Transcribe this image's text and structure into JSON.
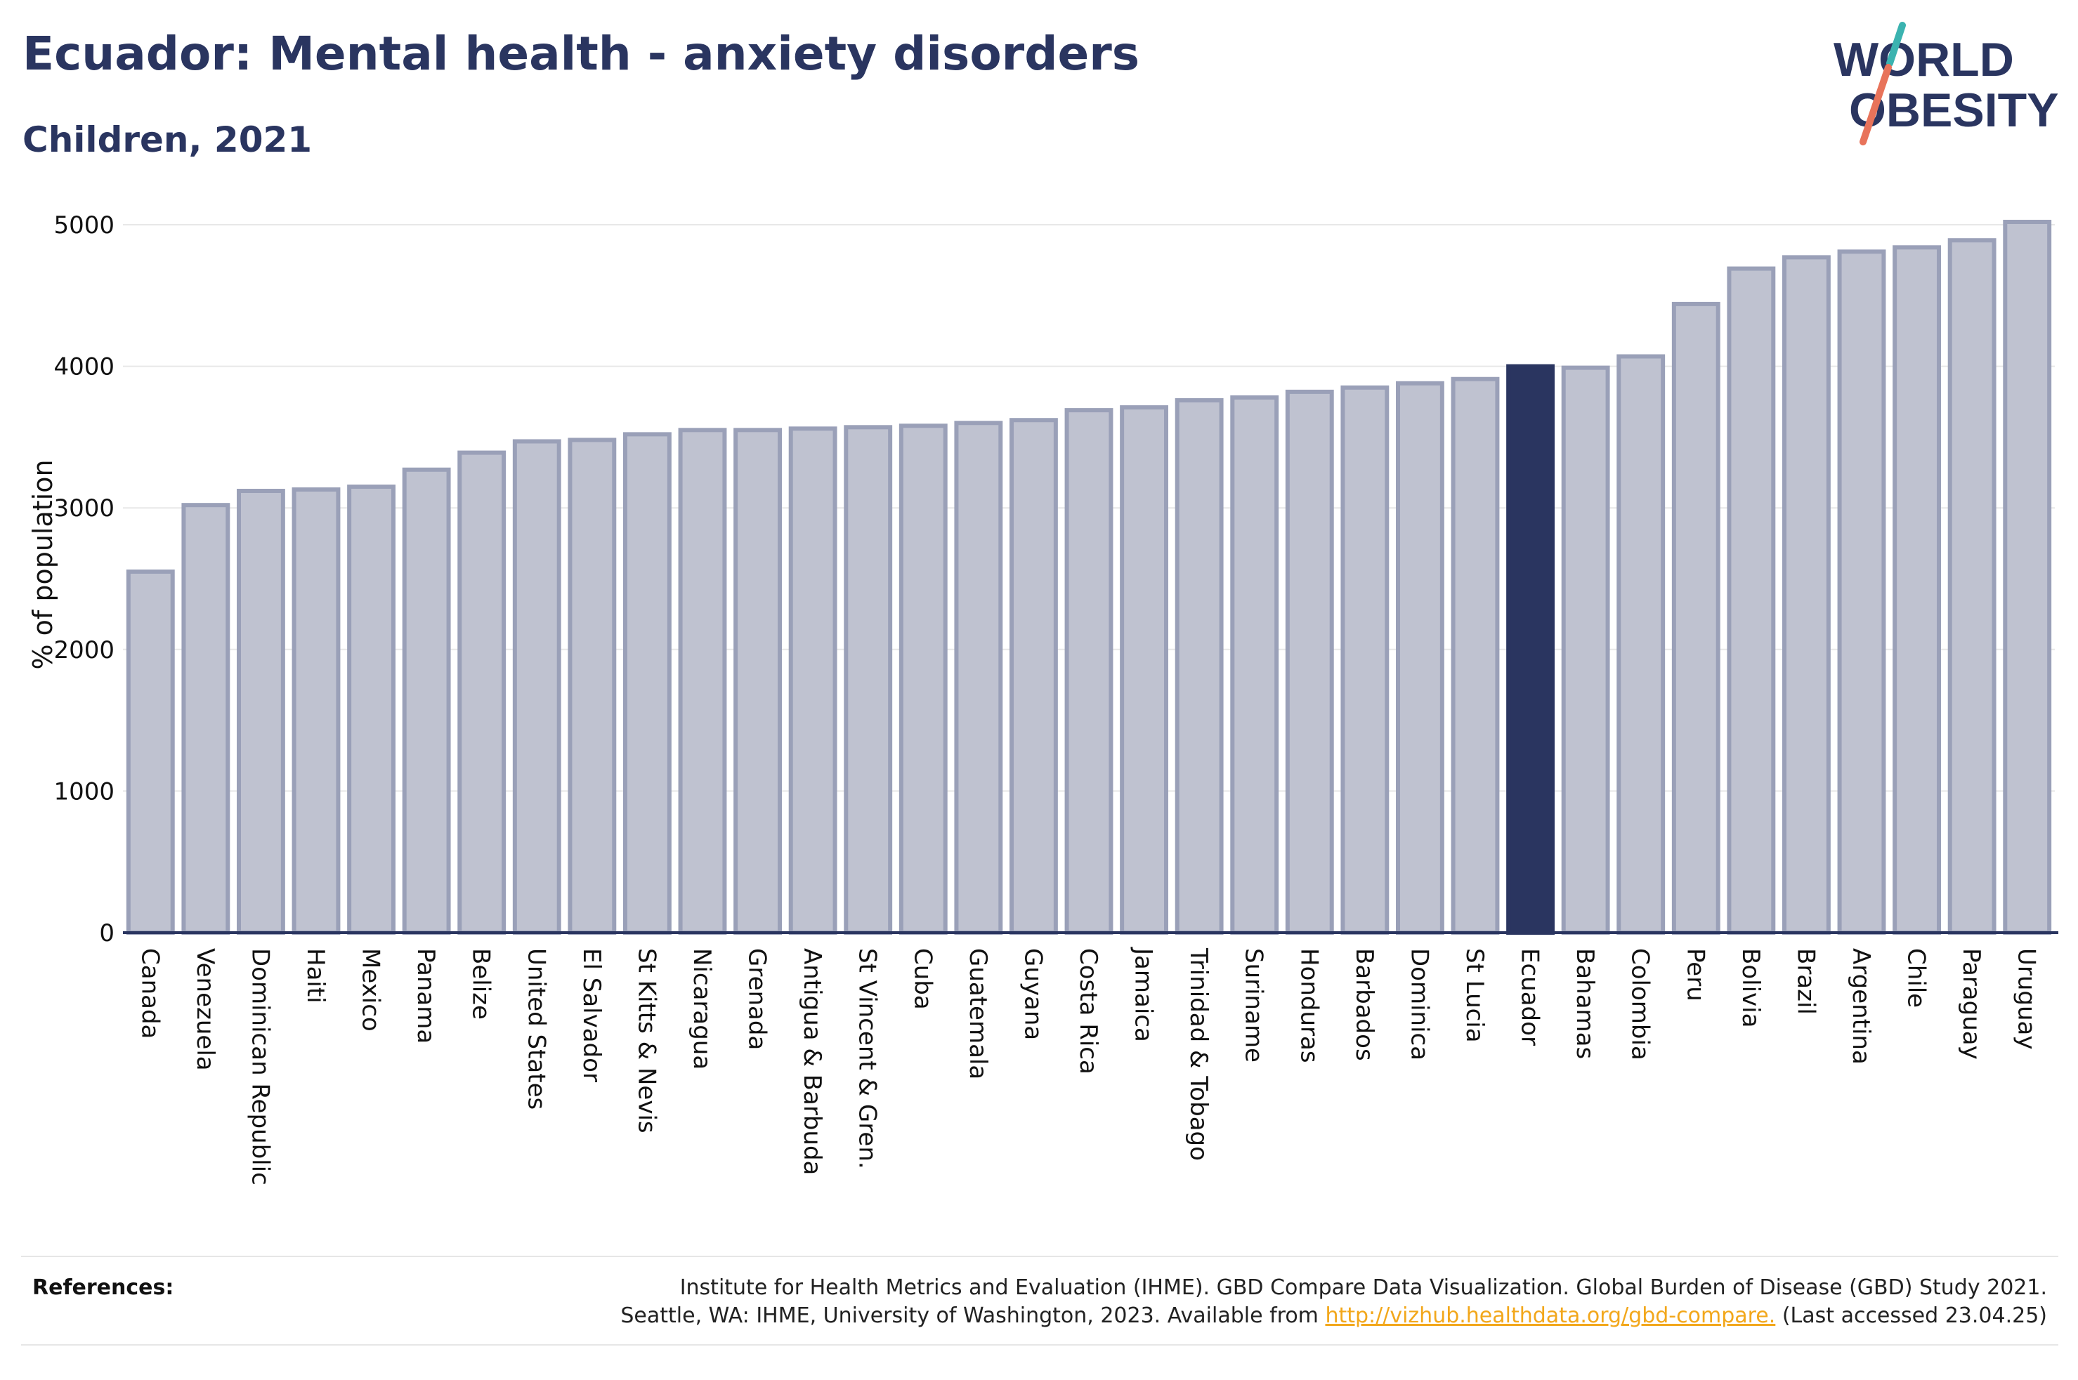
{
  "header": {
    "title": "Ecuador: Mental health - anxiety disorders",
    "subtitle": "Children, 2021"
  },
  "logo": {
    "line1": "WORLD",
    "line2": "OBESITY",
    "accent_teal": "#3bb3b0",
    "accent_coral": "#e8735a"
  },
  "colors": {
    "bar": "#bfc2d0",
    "bar_border": "#9aa0b8",
    "highlight": "#2a3560",
    "grid": "#e8e8e8",
    "axis": "#2a3560"
  },
  "chart_data": {
    "type": "bar",
    "title": "Ecuador: Mental health - anxiety disorders",
    "subtitle": "Children, 2021",
    "ylabel": "% of population",
    "xlabel": "",
    "ylim": [
      0,
      5000
    ],
    "yticks": [
      0,
      1000,
      2000,
      3000,
      4000,
      5000
    ],
    "grid": true,
    "highlight": "Ecuador",
    "categories": [
      "Canada",
      "Venezuela",
      "Dominican Republic",
      "Haiti",
      "Mexico",
      "Panama",
      "Belize",
      "United States",
      "El Salvador",
      "St Kitts & Nevis",
      "Nicaragua",
      "Grenada",
      "Antigua & Barbuda",
      "St Vincent & Gren.",
      "Cuba",
      "Guatemala",
      "Guyana",
      "Costa Rica",
      "Jamaica",
      "Trinidad & Tobago",
      "Suriname",
      "Honduras",
      "Barbados",
      "Dominica",
      "St Lucia",
      "Ecuador",
      "Bahamas",
      "Colombia",
      "Peru",
      "Bolivia",
      "Brazil",
      "Argentina",
      "Chile",
      "Paraguay",
      "Uruguay"
    ],
    "values": [
      2550,
      3020,
      3120,
      3130,
      3150,
      3270,
      3390,
      3470,
      3480,
      3520,
      3550,
      3550,
      3560,
      3570,
      3580,
      3600,
      3620,
      3690,
      3710,
      3760,
      3780,
      3820,
      3850,
      3880,
      3910,
      4000,
      3990,
      4070,
      4440,
      4690,
      4770,
      4810,
      4840,
      4890,
      5020
    ]
  },
  "references": {
    "label": "References:",
    "line1": "Institute for Health Metrics and Evaluation (IHME). GBD Compare Data Visualization. Global Burden of Disease (GBD) Study 2021.",
    "line2_prefix": "Seattle, WA: IHME, University of Washington, 2023. Available from ",
    "link": "http://vizhub.healthdata.org/gbd-compare.",
    "line2_suffix": " (Last accessed 23.04.25)"
  }
}
